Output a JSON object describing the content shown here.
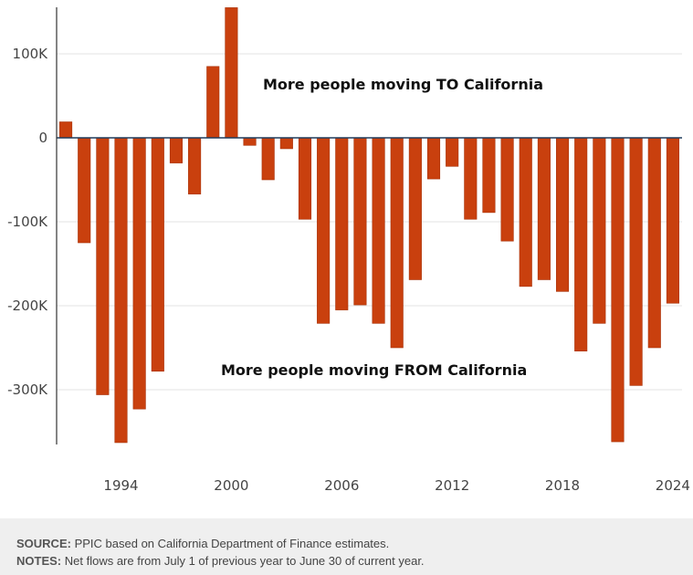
{
  "chart_data": {
    "type": "bar",
    "title": "",
    "xlabel": "",
    "ylabel": "",
    "x": [
      1991,
      1992,
      1993,
      1994,
      1995,
      1996,
      1997,
      1998,
      1999,
      2000,
      2001,
      2002,
      2003,
      2004,
      2005,
      2006,
      2007,
      2008,
      2009,
      2010,
      2011,
      2012,
      2013,
      2014,
      2015,
      2016,
      2017,
      2018,
      2019,
      2020,
      2021,
      2022,
      2023,
      2024
    ],
    "values": [
      19000,
      -125000,
      -306000,
      -363000,
      -323000,
      -278000,
      -30000,
      -67000,
      85000,
      155000,
      -9000,
      -50000,
      -13000,
      -97000,
      -221000,
      -205000,
      -199000,
      -221000,
      -250000,
      -169000,
      -49000,
      -34000,
      -97000,
      -89000,
      -123000,
      -177000,
      -169000,
      -183000,
      -254000,
      -221000,
      -362000,
      -295000,
      -250000,
      -197000
    ],
    "ylim": [
      -363000,
      155000
    ],
    "y_ticks": [
      100000,
      0,
      -100000,
      -200000,
      -300000
    ],
    "y_tick_labels": [
      "100K",
      "0",
      "-100K",
      "-200K",
      "-300K"
    ],
    "x_tick_labels": [
      "1994",
      "2000",
      "2006",
      "2012",
      "2018",
      "2024"
    ],
    "grid": true,
    "bar_color": "#c9400e",
    "annotations": {
      "top": "More people moving TO California",
      "bottom": "More people moving FROM California"
    }
  },
  "footer": {
    "source_label": "SOURCE:",
    "source_text": "PPIC based on California Department of Finance estimates.",
    "notes_label": "NOTES:",
    "notes_text": "Net flows are from July 1 of previous year to June 30 of current year."
  }
}
